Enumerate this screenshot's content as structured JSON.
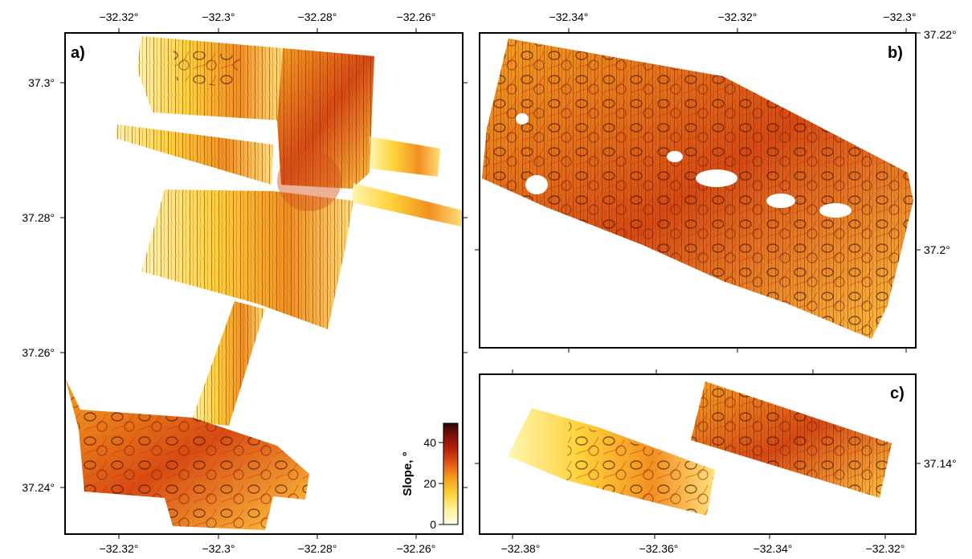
{
  "figure": {
    "colors": {
      "frame": "#000000",
      "colorbar_stops": [
        "#fffde8",
        "#fff29a",
        "#ffd23a",
        "#f7a21f",
        "#e25a14",
        "#b81f0c",
        "#6e0f08",
        "#2b0705"
      ]
    },
    "panels": [
      {
        "label": "a)",
        "top_lon_ticks": [
          "−32.32°",
          "−32.3°",
          "−32.28°",
          "−32.26°"
        ],
        "bottom_lon_ticks": [
          "−32.32°",
          "−32.3°",
          "−32.28°",
          "−32.26°"
        ],
        "lat_ticks": [
          "37.3°",
          "37.28°",
          "37.26°",
          "37.24°"
        ]
      },
      {
        "label": "b)",
        "top_lon_ticks": [
          "−32.34°",
          "−32.32°",
          "−32.3°"
        ],
        "lat_ticks": [
          "37.22°",
          "37.2°"
        ]
      },
      {
        "label": "c)",
        "bottom_lon_ticks": [
          "−32.38°",
          "−32.36°",
          "−32.34°",
          "−32.32°"
        ],
        "lat_ticks": [
          "37.14°"
        ]
      }
    ],
    "colorbar": {
      "label": "Slope, °",
      "min": 0,
      "max": 50,
      "ticks": [
        "40",
        "20",
        "0"
      ]
    }
  }
}
